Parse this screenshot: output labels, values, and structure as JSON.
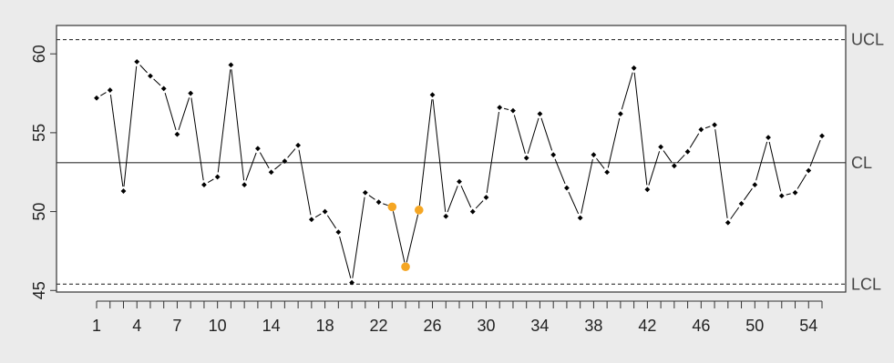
{
  "chart_data": {
    "type": "line",
    "title": "",
    "xlabel": "",
    "ylabel": "",
    "x": [
      1,
      2,
      3,
      4,
      5,
      6,
      7,
      8,
      9,
      10,
      11,
      12,
      13,
      14,
      15,
      16,
      17,
      18,
      19,
      20,
      21,
      22,
      23,
      24,
      25,
      26,
      27,
      28,
      29,
      30,
      31,
      32,
      33,
      34,
      35,
      36,
      37,
      38,
      39,
      40,
      41,
      42,
      43,
      44,
      45,
      46,
      47,
      48,
      49,
      50,
      51,
      52,
      53,
      54,
      55
    ],
    "series": [
      {
        "values": [
          57.2,
          57.7,
          51.3,
          59.5,
          58.6,
          57.8,
          54.9,
          57.5,
          51.7,
          52.2,
          59.3,
          51.7,
          54.0,
          52.5,
          53.2,
          54.2,
          49.5,
          50.0,
          48.7,
          45.5,
          51.2,
          50.6,
          50.3,
          46.5,
          50.1,
          57.4,
          49.7,
          51.9,
          50.0,
          50.9,
          56.6,
          56.4,
          53.4,
          56.2,
          53.6,
          51.5,
          49.6,
          53.6,
          52.5,
          56.2,
          59.1,
          51.4,
          54.1,
          52.9,
          53.8,
          55.2,
          55.5,
          49.3,
          50.5,
          51.7,
          54.7,
          51.0,
          51.2,
          52.6,
          54.8
        ]
      }
    ],
    "highlighted_x": [
      23,
      24,
      25
    ],
    "xticks": [
      1,
      4,
      7,
      10,
      14,
      18,
      22,
      26,
      30,
      34,
      38,
      42,
      46,
      50,
      54
    ],
    "yticks": [
      45,
      50,
      55,
      60
    ],
    "xlim": [
      1,
      55
    ],
    "ylim": [
      44.9,
      61.8
    ],
    "limits": [
      {
        "label": "UCL",
        "value": 60.9,
        "linestyle": "dashed"
      },
      {
        "label": "CL",
        "value": 53.1,
        "linestyle": "solid"
      },
      {
        "label": "LCL",
        "value": 45.4,
        "linestyle": "dashed"
      }
    ],
    "grid": false,
    "colors": {
      "background": "#ebebeb",
      "plot_background": "#ffffff",
      "point": "#000000",
      "highlight": "#f5a623",
      "line": "#000000"
    }
  }
}
